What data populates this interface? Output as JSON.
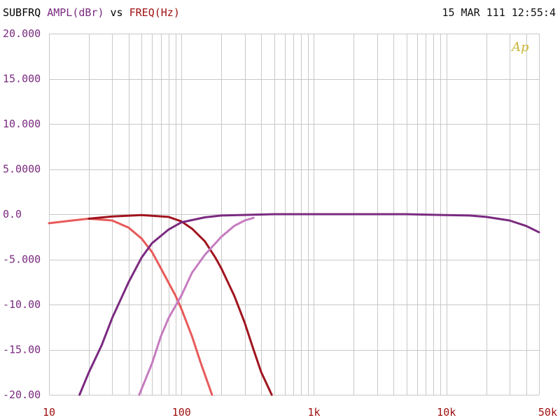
{
  "header": {
    "prefix": "SUBFRQ",
    "y_quantity": "AMPL(dBr)",
    "vs": "vs",
    "x_quantity": "FREQ(Hz)",
    "timestamp": "15 MAR 111 12:55:4"
  },
  "logo_text": "Ap",
  "colors": {
    "prefix": "#000000",
    "y_quantity": "#7a2a80",
    "x_quantity": "#a01010",
    "y_ticks": "#7a2a80",
    "x_ticks": "#a01010",
    "grid": "#c8c8c8",
    "logo": "#c9b63a"
  },
  "chart_data": {
    "type": "line",
    "x_scale": "log",
    "grid": true,
    "xlim": [
      10,
      50000
    ],
    "ylim": [
      -20,
      20
    ],
    "x_ticks": [
      {
        "value": 10,
        "label": "10"
      },
      {
        "value": 100,
        "label": "100"
      },
      {
        "value": 1000,
        "label": "1k"
      },
      {
        "value": 10000,
        "label": "10k"
      },
      {
        "value": 50000,
        "label": "50k"
      }
    ],
    "y_ticks": [
      {
        "value": 20,
        "label": "20.000"
      },
      {
        "value": 15,
        "label": "15.000"
      },
      {
        "value": 10,
        "label": "10.000"
      },
      {
        "value": 5,
        "label": "5.0000"
      },
      {
        "value": 0,
        "label": "0.0"
      },
      {
        "value": -5,
        "label": "-5.000"
      },
      {
        "value": -10,
        "label": "-10.00"
      },
      {
        "value": -15,
        "label": "-15.00"
      },
      {
        "value": -20,
        "label": "-20.00"
      }
    ],
    "series": [
      {
        "color": "#e85a5a",
        "points": [
          [
            10,
            -1.0
          ],
          [
            15,
            -0.7
          ],
          [
            20,
            -0.5
          ],
          [
            30,
            -0.7
          ],
          [
            40,
            -1.5
          ],
          [
            50,
            -2.7
          ],
          [
            60,
            -4.2
          ],
          [
            70,
            -6.0
          ],
          [
            80,
            -7.6
          ],
          [
            90,
            -9.0
          ],
          [
            100,
            -10.5
          ],
          [
            120,
            -13.5
          ],
          [
            140,
            -16.5
          ],
          [
            170,
            -20.0
          ]
        ]
      },
      {
        "color": "#a0141e",
        "points": [
          [
            20,
            -0.5
          ],
          [
            30,
            -0.25
          ],
          [
            50,
            -0.1
          ],
          [
            80,
            -0.3
          ],
          [
            100,
            -0.8
          ],
          [
            120,
            -1.6
          ],
          [
            150,
            -3.0
          ],
          [
            180,
            -4.8
          ],
          [
            200,
            -6.0
          ],
          [
            250,
            -9.0
          ],
          [
            300,
            -12.0
          ],
          [
            350,
            -15.0
          ],
          [
            400,
            -17.5
          ],
          [
            480,
            -20.0
          ]
        ]
      },
      {
        "color": "#7a2a80",
        "points": [
          [
            17,
            -20.0
          ],
          [
            20,
            -17.5
          ],
          [
            25,
            -14.5
          ],
          [
            30,
            -11.5
          ],
          [
            40,
            -7.5
          ],
          [
            50,
            -4.8
          ],
          [
            60,
            -3.2
          ],
          [
            80,
            -1.7
          ],
          [
            100,
            -0.9
          ],
          [
            150,
            -0.35
          ],
          [
            200,
            -0.15
          ],
          [
            500,
            0.0
          ],
          [
            1000,
            0.0
          ],
          [
            3000,
            0.0
          ],
          [
            5000,
            0.0
          ],
          [
            7000,
            -0.05
          ],
          [
            10000,
            -0.1
          ],
          [
            15000,
            -0.15
          ],
          [
            20000,
            -0.3
          ],
          [
            30000,
            -0.7
          ],
          [
            40000,
            -1.3
          ],
          [
            50000,
            -2.0
          ]
        ]
      },
      {
        "color": "#c67cc0",
        "points": [
          [
            48,
            -20.0
          ],
          [
            60,
            -16.5
          ],
          [
            70,
            -13.5
          ],
          [
            80,
            -11.5
          ],
          [
            100,
            -9.0
          ],
          [
            120,
            -6.5
          ],
          [
            150,
            -4.5
          ],
          [
            200,
            -2.5
          ],
          [
            250,
            -1.3
          ],
          [
            300,
            -0.7
          ],
          [
            350,
            -0.4
          ]
        ]
      }
    ]
  }
}
